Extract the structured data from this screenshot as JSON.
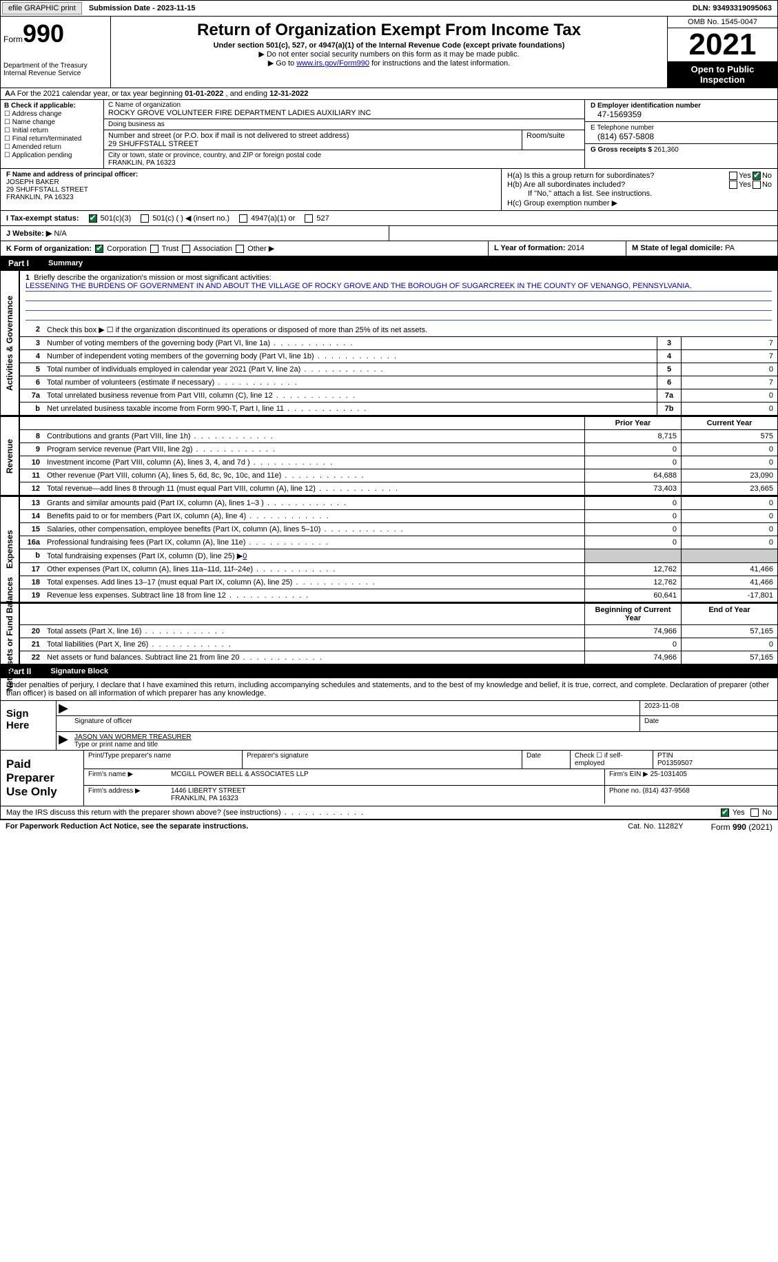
{
  "topbar": {
    "efile": "efile GRAPHIC print",
    "subdate_label": "Submission Date - ",
    "subdate": "2023-11-15",
    "dln_label": "DLN: ",
    "dln": "93493319095063"
  },
  "header": {
    "form_word": "Form",
    "form_num": "990",
    "dept": "Department of the Treasury\nInternal Revenue Service",
    "title": "Return of Organization Exempt From Income Tax",
    "sub": "Under section 501(c), 527, or 4947(a)(1) of the Internal Revenue Code (except private foundations)",
    "note1": "▶ Do not enter social security numbers on this form as it may be made public.",
    "note2_pre": "▶ Go to ",
    "note2_link": "www.irs.gov/Form990",
    "note2_post": " for instructions and the latest information.",
    "omb": "OMB No. 1545-0047",
    "year": "2021",
    "inspect": "Open to Public Inspection"
  },
  "rowA": {
    "pre": "A For the 2021 calendar year, or tax year beginning ",
    "begin": "01-01-2022",
    "mid": "   , and ending ",
    "end": "12-31-2022"
  },
  "colB": {
    "label": "B Check if applicable:",
    "opts": [
      "Address change",
      "Name change",
      "Initial return",
      "Final return/terminated",
      "Amended return",
      "Application pending"
    ]
  },
  "colC": {
    "name_label": "C Name of organization",
    "name": "ROCKY GROVE VOLUNTEER FIRE DEPARTMENT LADIES AUXILIARY INC",
    "dba_label": "Doing business as",
    "dba": "",
    "street_label": "Number and street (or P.O. box if mail is not delivered to street address)",
    "room_label": "Room/suite",
    "street": "29 SHUFFSTALL STREET",
    "city_label": "City or town, state or province, country, and ZIP or foreign postal code",
    "city": "FRANKLIN, PA  16323"
  },
  "colD": {
    "ein_label": "D Employer identification number",
    "ein": "47-1569359",
    "phone_label": "E Telephone number",
    "phone": "(814) 657-5808",
    "gross_label": "G Gross receipts $ ",
    "gross": "261,360"
  },
  "colF": {
    "label": "F  Name and address of principal officer:",
    "name": "JOSEPH BAKER",
    "street": "29 SHUFFSTALL STREET",
    "city": "FRANKLIN, PA   16323"
  },
  "colH": {
    "ha": "H(a)  Is this a group return for subordinates?",
    "hb": "H(b)  Are all subordinates included?",
    "hb_note": "If \"No,\" attach a list. See instructions.",
    "hc": "H(c)  Group exemption number ▶",
    "yes": "Yes",
    "no": "No"
  },
  "status": {
    "label": "I   Tax-exempt status:",
    "o1": "501(c)(3)",
    "o2": "501(c) (  ) ◀ (insert no.)",
    "o3": "4947(a)(1) or",
    "o4": "527"
  },
  "rowJ": {
    "label": "J   Website: ▶",
    "val": "  N/A"
  },
  "rowK": {
    "label": "K Form of organization:",
    "opts": [
      "Corporation",
      "Trust",
      "Association",
      "Other ▶"
    ],
    "l_label": "L Year of formation: ",
    "l_val": "2014",
    "m_label": "M State of legal domicile: ",
    "m_val": "PA"
  },
  "part1": {
    "num": "Part I",
    "title": "Summary"
  },
  "mission": {
    "label": "Briefly describe the organization's mission or most significant activities:",
    "text": "LESSENING THE BURDENS OF GOVERNMENT IN AND ABOUT THE VILLAGE OF ROCKY GROVE AND THE BOROUGH OF SUGARCREEK IN THE COUNTY OF VENANGO, PENNSYLVANIA."
  },
  "line2": "Check this box ▶ ☐  if the organization discontinued its operations or disposed of more than 25% of its net assets.",
  "govLines": [
    {
      "n": "3",
      "t": "Number of voting members of the governing body (Part VI, line 1a)",
      "b": "3",
      "v": "7"
    },
    {
      "n": "4",
      "t": "Number of independent voting members of the governing body (Part VI, line 1b)",
      "b": "4",
      "v": "7"
    },
    {
      "n": "5",
      "t": "Total number of individuals employed in calendar year 2021 (Part V, line 2a)",
      "b": "5",
      "v": "0"
    },
    {
      "n": "6",
      "t": "Total number of volunteers (estimate if necessary)",
      "b": "6",
      "v": "7"
    },
    {
      "n": "7a",
      "t": "Total unrelated business revenue from Part VIII, column (C), line 12",
      "b": "7a",
      "v": "0"
    },
    {
      "n": "b",
      "t": "Net unrelated business taxable income from Form 990-T, Part I, line 11",
      "b": "7b",
      "v": "0"
    }
  ],
  "colHeaders": {
    "prior": "Prior Year",
    "current": "Current Year",
    "begin": "Beginning of Current Year",
    "end": "End of Year"
  },
  "revLines": [
    {
      "n": "8",
      "t": "Contributions and grants (Part VIII, line 1h)",
      "p": "8,715",
      "c": "575"
    },
    {
      "n": "9",
      "t": "Program service revenue (Part VIII, line 2g)",
      "p": "0",
      "c": "0"
    },
    {
      "n": "10",
      "t": "Investment income (Part VIII, column (A), lines 3, 4, and 7d )",
      "p": "0",
      "c": "0"
    },
    {
      "n": "11",
      "t": "Other revenue (Part VIII, column (A), lines 5, 6d, 8c, 9c, 10c, and 11e)",
      "p": "64,688",
      "c": "23,090"
    },
    {
      "n": "12",
      "t": "Total revenue—add lines 8 through 11 (must equal Part VIII, column (A), line 12)",
      "p": "73,403",
      "c": "23,665"
    }
  ],
  "expLines": [
    {
      "n": "13",
      "t": "Grants and similar amounts paid (Part IX, column (A), lines 1–3 )",
      "p": "0",
      "c": "0"
    },
    {
      "n": "14",
      "t": "Benefits paid to or for members (Part IX, column (A), line 4)",
      "p": "0",
      "c": "0"
    },
    {
      "n": "15",
      "t": "Salaries, other compensation, employee benefits (Part IX, column (A), lines 5–10)",
      "p": "0",
      "c": "0"
    },
    {
      "n": "16a",
      "t": "Professional fundraising fees (Part IX, column (A), line 11e)",
      "p": "0",
      "c": "0"
    },
    {
      "n": "b",
      "t": "Total fundraising expenses (Part IX, column (D), line 25) ▶",
      "p": "",
      "c": "",
      "shaded": true,
      "extra": "0"
    },
    {
      "n": "17",
      "t": "Other expenses (Part IX, column (A), lines 11a–11d, 11f–24e)",
      "p": "12,762",
      "c": "41,466"
    },
    {
      "n": "18",
      "t": "Total expenses. Add lines 13–17 (must equal Part IX, column (A), line 25)",
      "p": "12,762",
      "c": "41,466"
    },
    {
      "n": "19",
      "t": "Revenue less expenses. Subtract line 18 from line 12",
      "p": "60,641",
      "c": "-17,801"
    }
  ],
  "netLines": [
    {
      "n": "20",
      "t": "Total assets (Part X, line 16)",
      "p": "74,966",
      "c": "57,165"
    },
    {
      "n": "21",
      "t": "Total liabilities (Part X, line 26)",
      "p": "0",
      "c": "0"
    },
    {
      "n": "22",
      "t": "Net assets or fund balances. Subtract line 21 from line 20",
      "p": "74,966",
      "c": "57,165"
    }
  ],
  "vlabels": {
    "gov": "Activities & Governance",
    "rev": "Revenue",
    "exp": "Expenses",
    "net": "Net Assets or Fund Balances"
  },
  "part2": {
    "num": "Part II",
    "title": "Signature Block"
  },
  "sigText": "Under penalties of perjury, I declare that I have examined this return, including accompanying schedules and statements, and to the best of my knowledge and belief, it is true, correct, and complete. Declaration of preparer (other than officer) is based on all information of which preparer has any knowledge.",
  "sign": {
    "here": "Sign Here",
    "sig_label": "Signature of officer",
    "date_label": "Date",
    "date": "2023-11-08",
    "name": "JASON VAN WORMER  TREASURER",
    "name_label": "Type or print name and title"
  },
  "prep": {
    "here": "Paid Preparer Use Only",
    "h_name": "Print/Type preparer's name",
    "h_sig": "Preparer's signature",
    "h_date": "Date",
    "h_check": "Check ☐ if self-employed",
    "h_ptin": "PTIN",
    "ptin": "P01359507",
    "firm_name_l": "Firm's name      ▶",
    "firm_name": "MCGILL POWER BELL & ASSOCIATES LLP",
    "firm_ein_l": "Firm's EIN ▶ ",
    "firm_ein": "25-1031405",
    "firm_addr_l": "Firm's address ▶",
    "firm_addr": "1446 LIBERTY STREET\nFRANKLIN, PA   16323",
    "firm_phone_l": "Phone no. ",
    "firm_phone": "(814) 437-9568"
  },
  "bottom": {
    "q": "May the IRS discuss this return with the preparer shown above? (see instructions)",
    "yes": "Yes",
    "no": "No"
  },
  "footer": {
    "l": "For Paperwork Reduction Act Notice, see the separate instructions.",
    "c": "Cat. No. 11282Y",
    "r": "Form 990 (2021)"
  }
}
